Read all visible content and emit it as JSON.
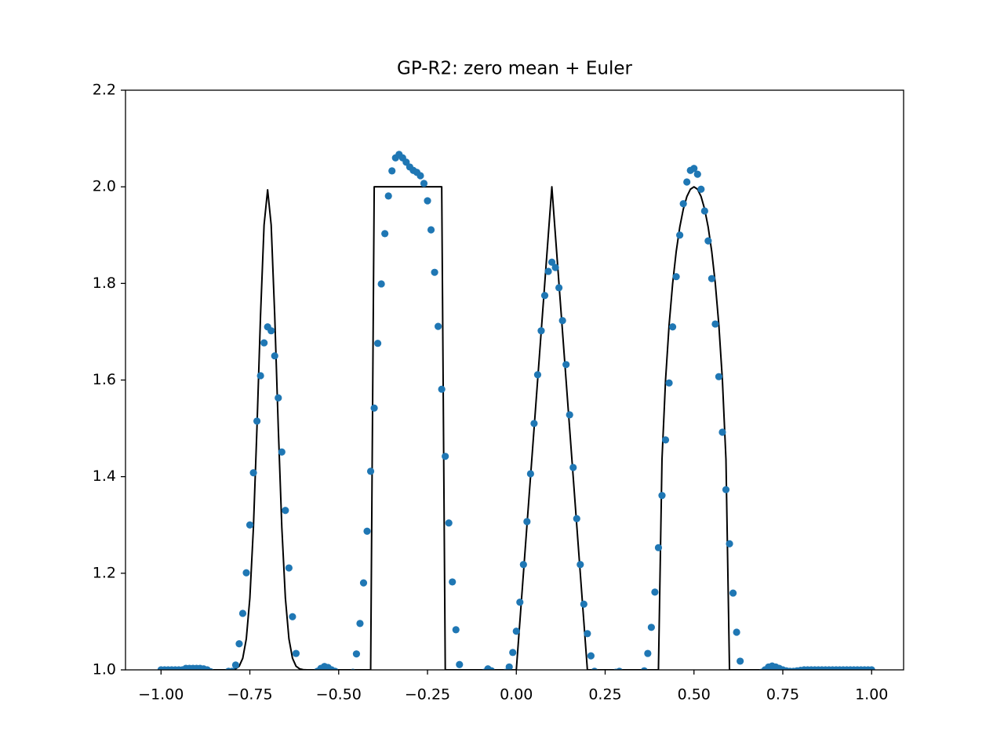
{
  "chart_data": {
    "type": "scatter",
    "title": "GP-R2: zero mean + Euler",
    "x": [
      -1.0,
      -0.99,
      -0.98,
      -0.97,
      -0.96,
      -0.95,
      -0.94,
      -0.93,
      -0.92,
      -0.91,
      -0.9,
      -0.89,
      -0.88,
      -0.87,
      -0.86,
      -0.85,
      -0.84,
      -0.83,
      -0.82,
      -0.81,
      -0.8,
      -0.79,
      -0.78,
      -0.77,
      -0.76,
      -0.75,
      -0.74,
      -0.73,
      -0.72,
      -0.71,
      -0.7,
      -0.69,
      -0.68,
      -0.67,
      -0.66,
      -0.65,
      -0.64,
      -0.63,
      -0.62,
      -0.61,
      -0.6,
      -0.59,
      -0.58,
      -0.57,
      -0.56,
      -0.55,
      -0.54,
      -0.53,
      -0.52,
      -0.51,
      -0.5,
      -0.49,
      -0.48,
      -0.47,
      -0.46,
      -0.45,
      -0.44,
      -0.43,
      -0.42,
      -0.41,
      -0.4,
      -0.39,
      -0.38,
      -0.37,
      -0.36,
      -0.35,
      -0.34,
      -0.33,
      -0.32,
      -0.31,
      -0.3,
      -0.29,
      -0.28,
      -0.27,
      -0.26,
      -0.25,
      -0.24,
      -0.23,
      -0.22,
      -0.21,
      -0.2,
      -0.19,
      -0.18,
      -0.17,
      -0.16,
      -0.15,
      -0.14,
      -0.13,
      -0.12,
      -0.11,
      -0.1,
      -0.09,
      -0.08,
      -0.07,
      -0.06,
      -0.05,
      -0.04,
      -0.03,
      -0.02,
      -0.01,
      0.0,
      0.01,
      0.02,
      0.03,
      0.04,
      0.05,
      0.06,
      0.07,
      0.08,
      0.09,
      0.1,
      0.11,
      0.12,
      0.13,
      0.14,
      0.15,
      0.16,
      0.17,
      0.18,
      0.19,
      0.2,
      0.21,
      0.22,
      0.23,
      0.24,
      0.25,
      0.26,
      0.27,
      0.28,
      0.29,
      0.3,
      0.31,
      0.32,
      0.33,
      0.34,
      0.35,
      0.36,
      0.37,
      0.38,
      0.39,
      0.4,
      0.41,
      0.42,
      0.43,
      0.44,
      0.45,
      0.46,
      0.47,
      0.48,
      0.49,
      0.5,
      0.51,
      0.52,
      0.53,
      0.54,
      0.55,
      0.56,
      0.57,
      0.58,
      0.59,
      0.6,
      0.61,
      0.62,
      0.63,
      0.64,
      0.65,
      0.66,
      0.67,
      0.68,
      0.69,
      0.7,
      0.71,
      0.72,
      0.73,
      0.74,
      0.75,
      0.76,
      0.77,
      0.78,
      0.79,
      0.8,
      0.81,
      0.82,
      0.83,
      0.84,
      0.85,
      0.86,
      0.87,
      0.88,
      0.89,
      0.9,
      0.91,
      0.92,
      0.93,
      0.94,
      0.95,
      0.96,
      0.97,
      0.98,
      0.99,
      1.0
    ],
    "series": [
      {
        "type": "line",
        "color": "#000000",
        "values": [
          1,
          1,
          1,
          1,
          1,
          1,
          1,
          1,
          1,
          1,
          1,
          1,
          1,
          1,
          1,
          1,
          1,
          1,
          1,
          1,
          1.0005,
          1.0021,
          1.0076,
          1.024,
          1.0643,
          1.1485,
          1.2943,
          1.5012,
          1.7331,
          1.921,
          1.9937,
          1.921,
          1.7331,
          1.5012,
          1.2943,
          1.1485,
          1.0643,
          1.024,
          1.0076,
          1.0021,
          1.0005,
          1,
          1,
          1,
          1,
          1,
          1,
          1,
          1,
          1,
          1,
          1,
          1,
          1,
          1,
          1,
          1,
          1,
          1,
          1,
          2,
          2,
          2,
          2,
          2,
          2,
          2,
          2,
          2,
          2,
          2,
          2,
          2,
          2,
          2,
          2,
          2,
          2,
          2,
          2,
          1,
          1,
          1,
          1,
          1,
          1,
          1,
          1,
          1,
          1,
          1,
          1,
          1,
          1,
          1,
          1,
          1,
          1,
          1,
          1,
          1,
          1.1,
          1.2,
          1.3,
          1.4,
          1.5,
          1.6,
          1.7,
          1.8,
          1.9,
          2,
          1.9,
          1.8,
          1.7,
          1.6,
          1.5,
          1.4,
          1.3,
          1.2,
          1.1,
          1,
          1,
          1,
          1,
          1,
          1,
          1,
          1,
          1,
          1,
          1,
          1,
          1,
          1,
          1,
          1,
          1,
          1,
          1,
          1,
          1,
          1.4359,
          1.6,
          1.7141,
          1.8,
          1.866,
          1.9165,
          1.9539,
          1.9798,
          1.995,
          2,
          1.995,
          1.9798,
          1.9539,
          1.9165,
          1.866,
          1.8,
          1.7141,
          1.6,
          1.4359,
          1,
          1,
          1,
          1,
          1,
          1,
          1,
          1,
          1,
          1,
          1,
          1,
          1,
          1,
          1,
          1,
          1,
          1,
          1,
          1,
          1,
          1,
          1,
          1,
          1,
          1,
          1,
          1,
          1,
          1,
          1,
          1,
          1,
          1,
          1,
          1,
          1,
          1,
          1,
          1,
          1
        ]
      },
      {
        "type": "scatter",
        "color": "#1f77b4",
        "values": [
          1,
          1,
          1,
          1,
          1,
          1,
          1,
          1.003,
          1.003,
          1.003,
          1.003,
          1.003,
          1.002,
          1,
          0.996,
          0.99,
          0.985,
          0.985,
          0.99,
          0.997,
          0.997,
          1.01,
          1.054,
          1.117,
          1.201,
          1.3,
          1.408,
          1.515,
          1.609,
          1.677,
          1.71,
          1.702,
          1.65,
          1.563,
          1.451,
          1.33,
          1.211,
          1.11,
          1.034,
          0.99,
          0.98,
          0.98,
          0.985,
          0.99,
          0.997,
          1.003,
          1.007,
          1.005,
          1,
          0.997,
          0.99,
          0.985,
          0.98,
          0.985,
          0.995,
          1.033,
          1.096,
          1.18,
          1.287,
          1.411,
          1.542,
          1.676,
          1.799,
          1.903,
          1.981,
          2.033,
          2.06,
          2.067,
          2.06,
          2.051,
          2.041,
          2.034,
          2.03,
          2.023,
          2.007,
          1.971,
          1.911,
          1.823,
          1.711,
          1.581,
          1.442,
          1.304,
          1.182,
          1.083,
          1.011,
          0.98,
          0.97,
          0.97,
          0.98,
          0.985,
          0.99,
          0.995,
          1.002,
          0.998,
          0.99,
          0.985,
          0.99,
          0.995,
          1.006,
          1.036,
          1.08,
          1.14,
          1.218,
          1.307,
          1.406,
          1.51,
          1.611,
          1.702,
          1.775,
          1.825,
          1.844,
          1.833,
          1.791,
          1.723,
          1.632,
          1.528,
          1.419,
          1.313,
          1.218,
          1.136,
          1.075,
          1.029,
          0.997,
          0.98,
          0.975,
          0.98,
          0.985,
          0.99,
          0.995,
          0.997,
          0.99,
          0.98,
          0.975,
          0.975,
          0.98,
          0.99,
          0.998,
          1.034,
          1.088,
          1.161,
          1.253,
          1.361,
          1.476,
          1.594,
          1.71,
          1.814,
          1.9,
          1.965,
          2.01,
          2.034,
          2.038,
          2.026,
          1.995,
          1.95,
          1.888,
          1.81,
          1.716,
          1.607,
          1.492,
          1.373,
          1.261,
          1.159,
          1.078,
          1.018,
          0.99,
          0.98,
          0.975,
          0.98,
          0.99,
          0.995,
          1,
          1.006,
          1.008,
          1.006,
          1.003,
          1,
          0.998,
          0.997,
          0.997,
          0.998,
          0.999,
          1,
          1,
          1,
          1,
          1,
          1,
          1,
          1,
          1,
          1,
          1,
          1,
          1,
          1,
          1,
          1,
          1,
          1,
          1,
          1
        ]
      }
    ],
    "xlim": [
      -1.1,
      1.09
    ],
    "ylim": [
      1.0,
      2.2
    ],
    "xticks": [
      {
        "value": -1,
        "label": "−1.00"
      },
      {
        "value": -0.75,
        "label": "−0.75"
      },
      {
        "value": -0.5,
        "label": "−0.50"
      },
      {
        "value": -0.25,
        "label": "−0.25"
      },
      {
        "value": 0,
        "label": "0.00"
      },
      {
        "value": 0.25,
        "label": "0.25"
      },
      {
        "value": 0.5,
        "label": "0.50"
      },
      {
        "value": 0.75,
        "label": "0.75"
      },
      {
        "value": 1,
        "label": "1.00"
      }
    ],
    "yticks": [
      {
        "value": 1,
        "label": "1.0"
      },
      1.2,
      1.4,
      1.6,
      1.8,
      {
        "value": 2,
        "label": "2.0"
      },
      2.2
    ]
  }
}
